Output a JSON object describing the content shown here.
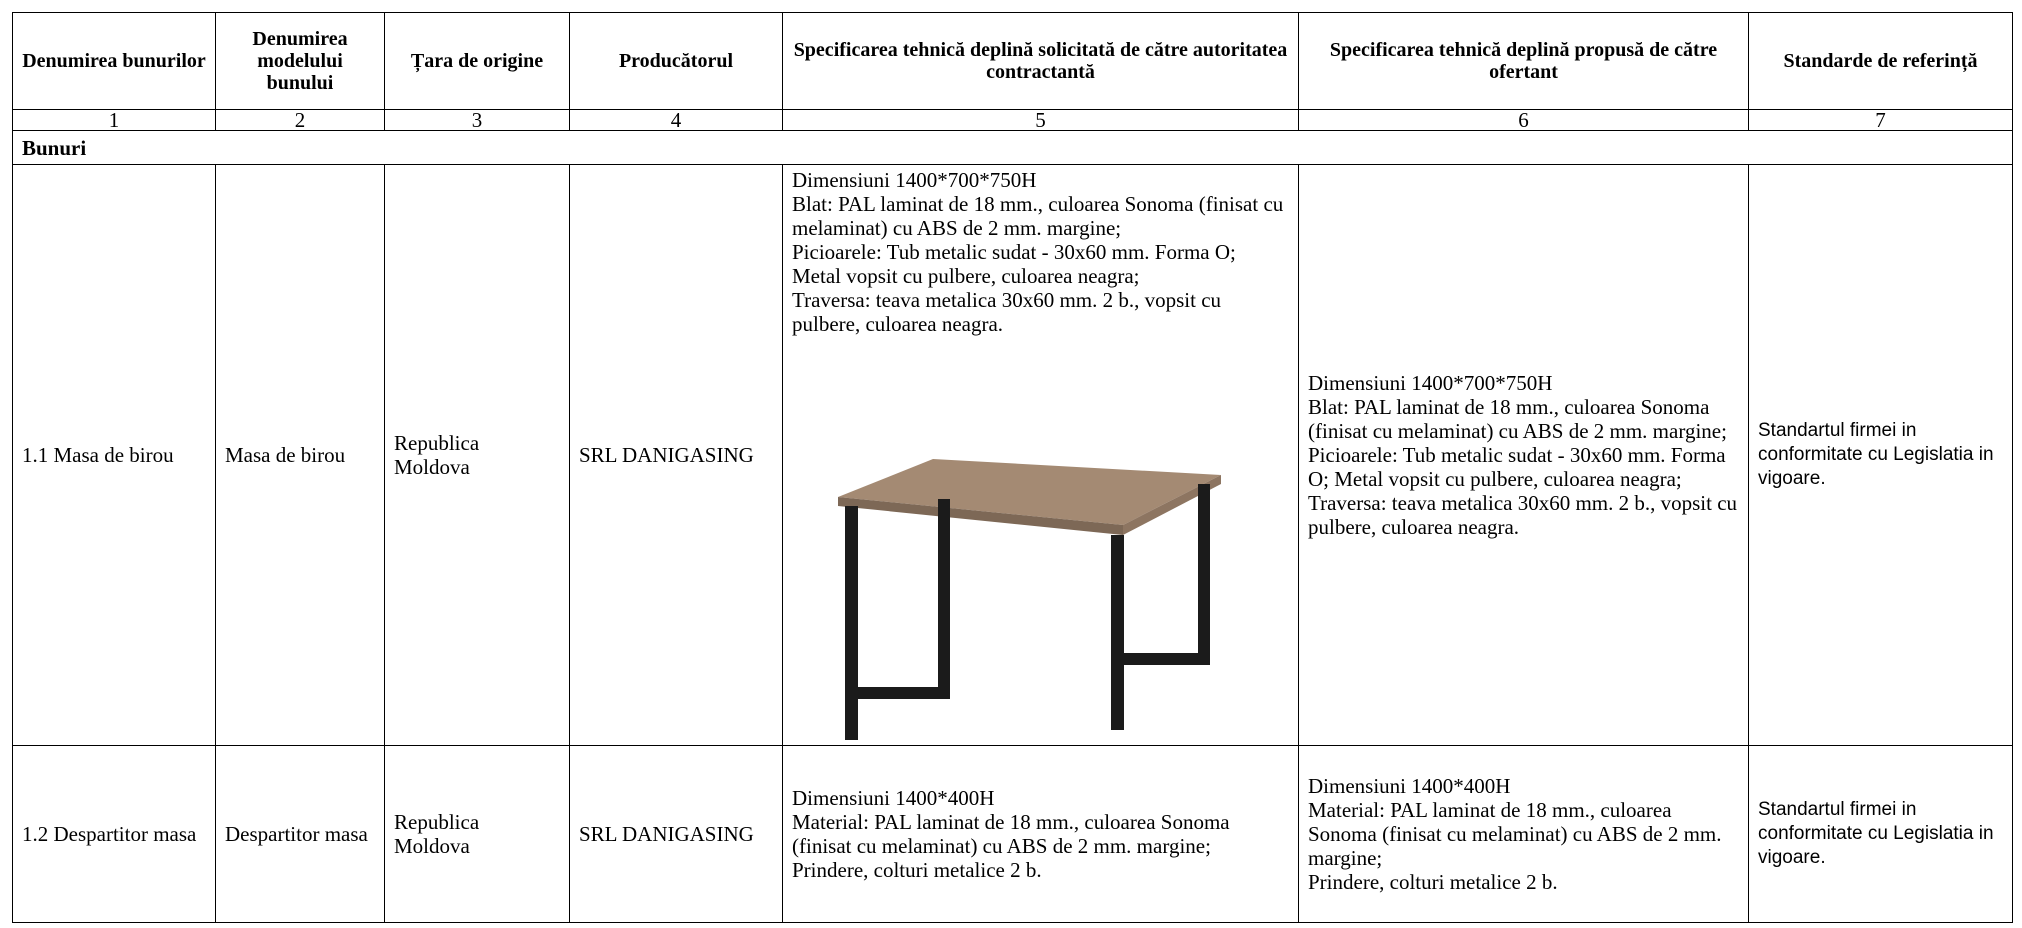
{
  "header": [
    "Denumirea bunurilor",
    "Denumirea modelului bunului",
    "Țara de origine",
    "Producătorul",
    "Specificarea tehnică deplină solicitată de către autoritatea contractantă",
    "Specificarea tehnică deplină propusă de către ofertant",
    "Standarde de referință"
  ],
  "column_numbers": [
    "1",
    "2",
    "3",
    "4",
    "5",
    "6",
    "7"
  ],
  "section": "Bunuri",
  "rows": [
    {
      "cells": [
        "1.1 Masa de birou",
        "Masa de birou",
        "Republica Moldova",
        "SRL DANIGASING"
      ],
      "requested": [
        "Dimensiuni 1400*700*750H",
        "Blat: PAL laminat de 18 mm., culoarea Sonoma (finisat cu melaminat) cu ABS de 2 mm. margine;",
        "Picioarele: Tub metalic sudat - 30x60 mm. Forma O; Metal vopsit cu pulbere, culoarea neagra;",
        "Traversa: teava metalica 30x60 mm. 2 b., vopsit cu pulbere, culoarea neagra."
      ],
      "proposed": [
        "Dimensiuni 1400*700*750H",
        "Blat: PAL laminat de 18 mm., culoarea Sonoma (finisat cu melaminat) cu ABS de 2 mm. margine;",
        "Picioarele: Tub metalic sudat - 30x60 mm. Forma O; Metal vopsit cu pulbere, culoarea neagra;",
        "Traversa: teava metalica 30x60 mm. 2 b., vopsit cu pulbere, culoarea neagra."
      ],
      "standard": "Standartul firmei in conformitate cu Legislatia in vigoare."
    },
    {
      "cells": [
        "1.2 Despartitor masa",
        "Despartitor masa",
        "Republica Moldova",
        "SRL DANIGASING"
      ],
      "requested": [
        "Dimensiuni 1400*400H",
        "Material: PAL laminat de 18 mm., culoarea Sonoma (finisat cu melaminat) cu ABS de 2 mm. margine;",
        "Prindere, colturi metalice 2 b."
      ],
      "proposed": [
        "Dimensiuni 1400*400H",
        "Material: PAL laminat de 18 mm., culoarea Sonoma (finisat cu melaminat) cu ABS de 2 mm. margine;",
        "Prindere, colturi metalice 2 b."
      ],
      "standard": "Standartul firmei in conformitate cu Legislatia in vigoare."
    }
  ]
}
